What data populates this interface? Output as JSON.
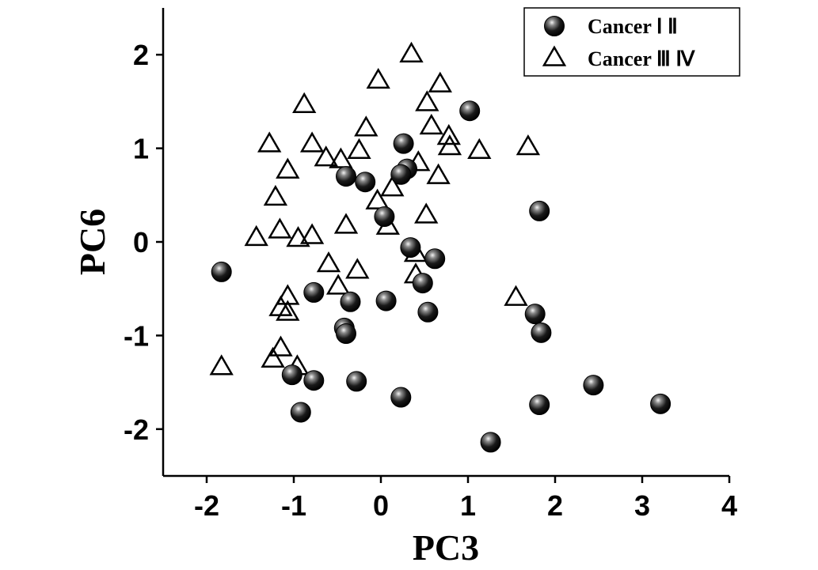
{
  "chart_data": {
    "type": "scatter",
    "xlabel": "PC3",
    "ylabel": "PC6",
    "xlim": [
      -2.5,
      4
    ],
    "ylim": [
      -2.5,
      2.5
    ],
    "xticks": [
      -2,
      -1,
      0,
      1,
      2,
      3,
      4
    ],
    "yticks": [
      -2,
      -1,
      0,
      1,
      2
    ],
    "xtick_labels": [
      "-2",
      "-1",
      "0",
      "1",
      "2",
      "3",
      "4"
    ],
    "ytick_labels": [
      "-2",
      "-1",
      "0",
      "1",
      "2"
    ],
    "grid": false,
    "legend_position": "top-right",
    "series": [
      {
        "name": "Cancer Ⅰ Ⅱ",
        "marker": "sphere",
        "color": "#000000",
        "points": [
          [
            1.02,
            1.4
          ],
          [
            0.26,
            1.05
          ],
          [
            0.3,
            0.78
          ],
          [
            0.23,
            0.72
          ],
          [
            -0.4,
            0.7
          ],
          [
            -0.18,
            0.64
          ],
          [
            0.04,
            0.27
          ],
          [
            1.82,
            0.33
          ],
          [
            -1.83,
            -0.32
          ],
          [
            0.34,
            -0.06
          ],
          [
            0.62,
            -0.18
          ],
          [
            0.48,
            -0.44
          ],
          [
            -0.77,
            -0.54
          ],
          [
            -0.35,
            -0.64
          ],
          [
            0.06,
            -0.63
          ],
          [
            0.54,
            -0.75
          ],
          [
            1.77,
            -0.77
          ],
          [
            -0.42,
            -0.92
          ],
          [
            -0.4,
            -0.98
          ],
          [
            1.84,
            -0.97
          ],
          [
            -1.02,
            -1.42
          ],
          [
            -0.77,
            -1.48
          ],
          [
            -0.28,
            -1.49
          ],
          [
            0.23,
            -1.66
          ],
          [
            2.44,
            -1.53
          ],
          [
            -0.92,
            -1.82
          ],
          [
            1.82,
            -1.74
          ],
          [
            3.21,
            -1.73
          ],
          [
            1.26,
            -2.14
          ]
        ]
      },
      {
        "name": "Cancer Ⅲ Ⅳ",
        "marker": "open-triangle",
        "color": "#000000",
        "points": [
          [
            0.35,
            2.0
          ],
          [
            -0.03,
            1.72
          ],
          [
            0.68,
            1.68
          ],
          [
            0.53,
            1.48
          ],
          [
            -0.88,
            1.46
          ],
          [
            -0.17,
            1.21
          ],
          [
            0.58,
            1.23
          ],
          [
            0.78,
            1.12
          ],
          [
            -1.28,
            1.04
          ],
          [
            -0.79,
            1.04
          ],
          [
            -0.25,
            0.97
          ],
          [
            0.79,
            1.01
          ],
          [
            1.13,
            0.97
          ],
          [
            1.69,
            1.01
          ],
          [
            -0.63,
            0.89
          ],
          [
            -0.46,
            0.87
          ],
          [
            -1.07,
            0.76
          ],
          [
            0.43,
            0.84
          ],
          [
            0.66,
            0.7
          ],
          [
            0.13,
            0.57
          ],
          [
            -1.21,
            0.47
          ],
          [
            -0.04,
            0.43
          ],
          [
            0.52,
            0.28
          ],
          [
            -1.43,
            0.04
          ],
          [
            -1.16,
            0.12
          ],
          [
            -0.95,
            0.03
          ],
          [
            -0.79,
            0.06
          ],
          [
            -0.4,
            0.17
          ],
          [
            0.08,
            0.16
          ],
          [
            -0.6,
            -0.24
          ],
          [
            -0.27,
            -0.31
          ],
          [
            0.4,
            -0.13
          ],
          [
            0.4,
            -0.36
          ],
          [
            -0.49,
            -0.48
          ],
          [
            -1.07,
            -0.59
          ],
          [
            -1.15,
            -0.71
          ],
          [
            -1.07,
            -0.76
          ],
          [
            1.55,
            -0.6
          ],
          [
            -1.15,
            -1.14
          ],
          [
            -1.24,
            -1.26
          ],
          [
            -0.96,
            -1.34
          ],
          [
            -1.83,
            -1.34
          ]
        ]
      }
    ]
  }
}
